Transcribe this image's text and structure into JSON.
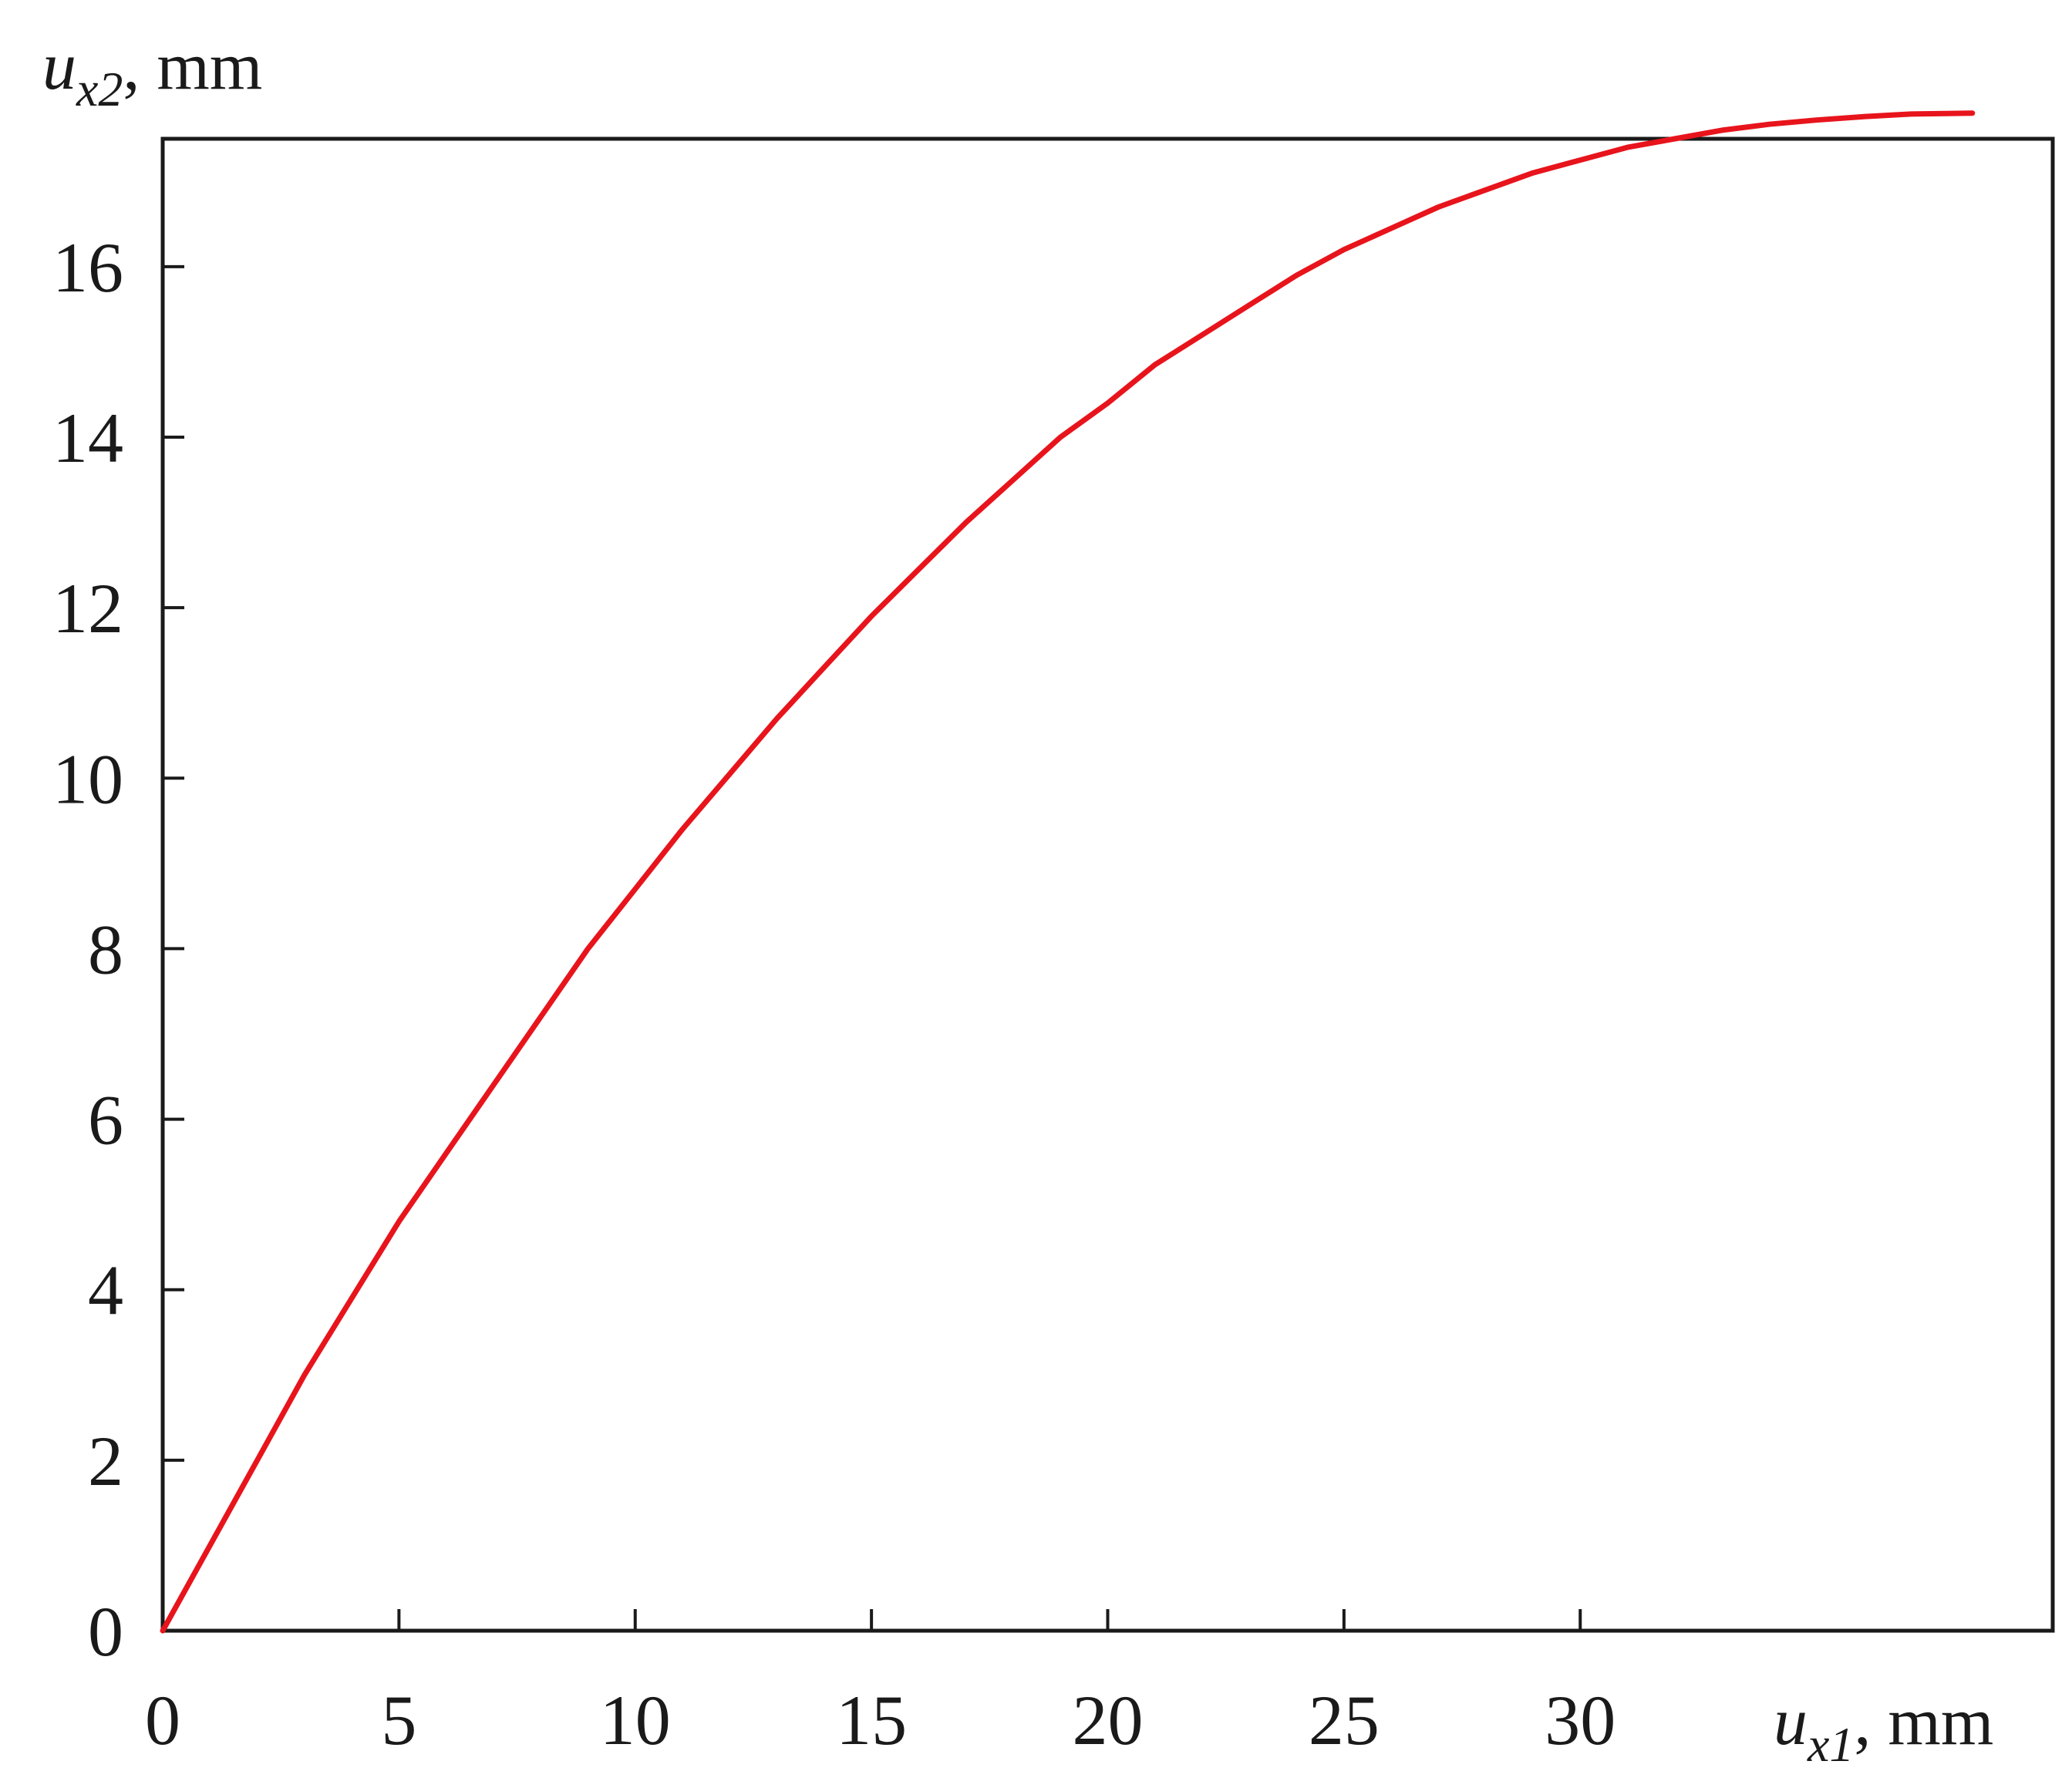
{
  "chart_data": {
    "type": "line",
    "title": "",
    "xlabel": {
      "symbol": "u",
      "subscript": "x1",
      "unit": ", mm"
    },
    "ylabel": {
      "symbol": "u",
      "subscript": "x2",
      "unit": ", mm"
    },
    "xlim": [
      0,
      40
    ],
    "ylim": [
      0,
      17.5
    ],
    "x_ticks": [
      "0",
      "5",
      "10",
      "15",
      "20",
      "25",
      "30"
    ],
    "x_tick_values": [
      0,
      5,
      10,
      15,
      20,
      25,
      30
    ],
    "y_ticks": [
      "0",
      "2",
      "4",
      "6",
      "8",
      "10",
      "12",
      "14",
      "16"
    ],
    "y_tick_values": [
      0,
      2,
      4,
      6,
      8,
      10,
      12,
      14,
      16
    ],
    "grid": false,
    "legend": "none",
    "series": [
      {
        "color": "#e8141c",
        "x": [
          0,
          1,
          2,
          3,
          4,
          5,
          6,
          7,
          8,
          9,
          10,
          11,
          12,
          13,
          14,
          15,
          16,
          17,
          18,
          19,
          20,
          21,
          22,
          23,
          24,
          25,
          26,
          27,
          28,
          29,
          30,
          31,
          32,
          33,
          34,
          35,
          36,
          37,
          38.3
        ],
        "y": [
          0,
          1.0,
          2.0,
          3.0,
          3.9,
          4.8,
          5.6,
          6.4,
          7.2,
          8.0,
          8.7,
          9.4,
          10.05,
          10.7,
          11.3,
          11.9,
          12.45,
          13.0,
          13.5,
          14.0,
          14.4,
          14.85,
          15.2,
          15.55,
          15.9,
          16.2,
          16.45,
          16.7,
          16.9,
          17.1,
          17.25,
          17.4,
          17.5,
          17.6,
          17.67,
          17.72,
          17.76,
          17.79,
          17.8
        ]
      }
    ]
  }
}
